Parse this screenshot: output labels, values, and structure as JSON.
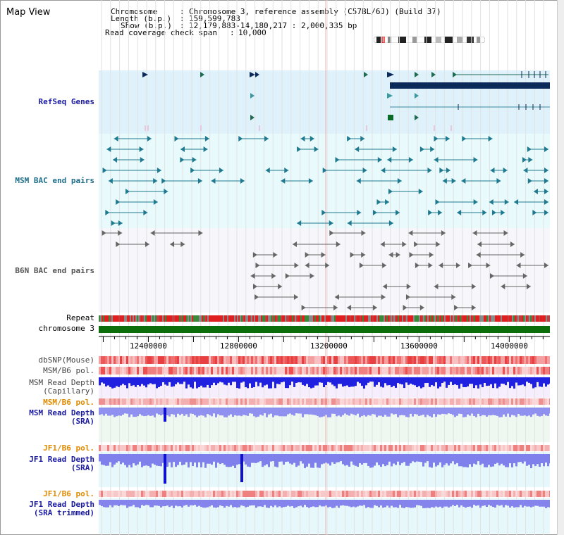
{
  "page": {
    "title": "Map View"
  },
  "header": {
    "chromosome_label": "Chromosome",
    "chromosome_value": "Chromosome 3, reference assembly (C57BL/6J) (Build 37)",
    "length_label": "Length (b.p.)",
    "length_value": "159,599,783",
    "show_label": "Show (b.p.)",
    "show_value": "12,179,883-14,180,217 : 2,000,335 bp",
    "coverage_label": "Read coverage check span",
    "coverage_value": "10,000"
  },
  "tracks": {
    "refseq": "RefSeq Genes",
    "msm_bac": "MSM BAC end pairs",
    "b6n_bac": "B6N BAC end pairs",
    "repeat": "Repeat",
    "chromosome": "chromosome 3",
    "dbsnp": "dbSNP(Mouse)",
    "msm_pol": "MSM/B6 pol.",
    "msm_depth_cap_1": "MSM Read Depth",
    "msm_depth_cap_2": "(Capillary)",
    "msm_pol2": "MSM/B6 pol.",
    "msm_depth_sra_1": "MSM Read Depth",
    "msm_depth_sra_2": "(SRA)",
    "jf1_pol": "JF1/B6 pol.",
    "jf1_depth_sra_1": "JF1 Read Depth",
    "jf1_depth_sra_2": "(SRA)",
    "jf1_pol2": "JF1/B6 pol.",
    "jf1_depth_trim_1": "JF1 Read Depth",
    "jf1_depth_trim_2": "(SRA trimmed)"
  },
  "axis": {
    "start": 12179883,
    "end": 14180217,
    "tick_labels": [
      "12400000",
      "12800000",
      "13200000",
      "13600000",
      "14000000"
    ],
    "tick_values": [
      12400000,
      12800000,
      13200000,
      13600000,
      14000000
    ]
  },
  "colors": {
    "refseq_bg": "#dff1fb",
    "msm_bg": "#e9fafc",
    "b6n_bg": "#f7f7fb",
    "refseq_feature": "#1e6b52",
    "refseq_dark": "#0b2a5a",
    "msm_feature": "#1f7a90",
    "b6n_feature": "#666666",
    "chromosome_band": "#0b6e0b",
    "label_blue": "#1a1aa0",
    "label_orange": "#e08a00"
  }
}
